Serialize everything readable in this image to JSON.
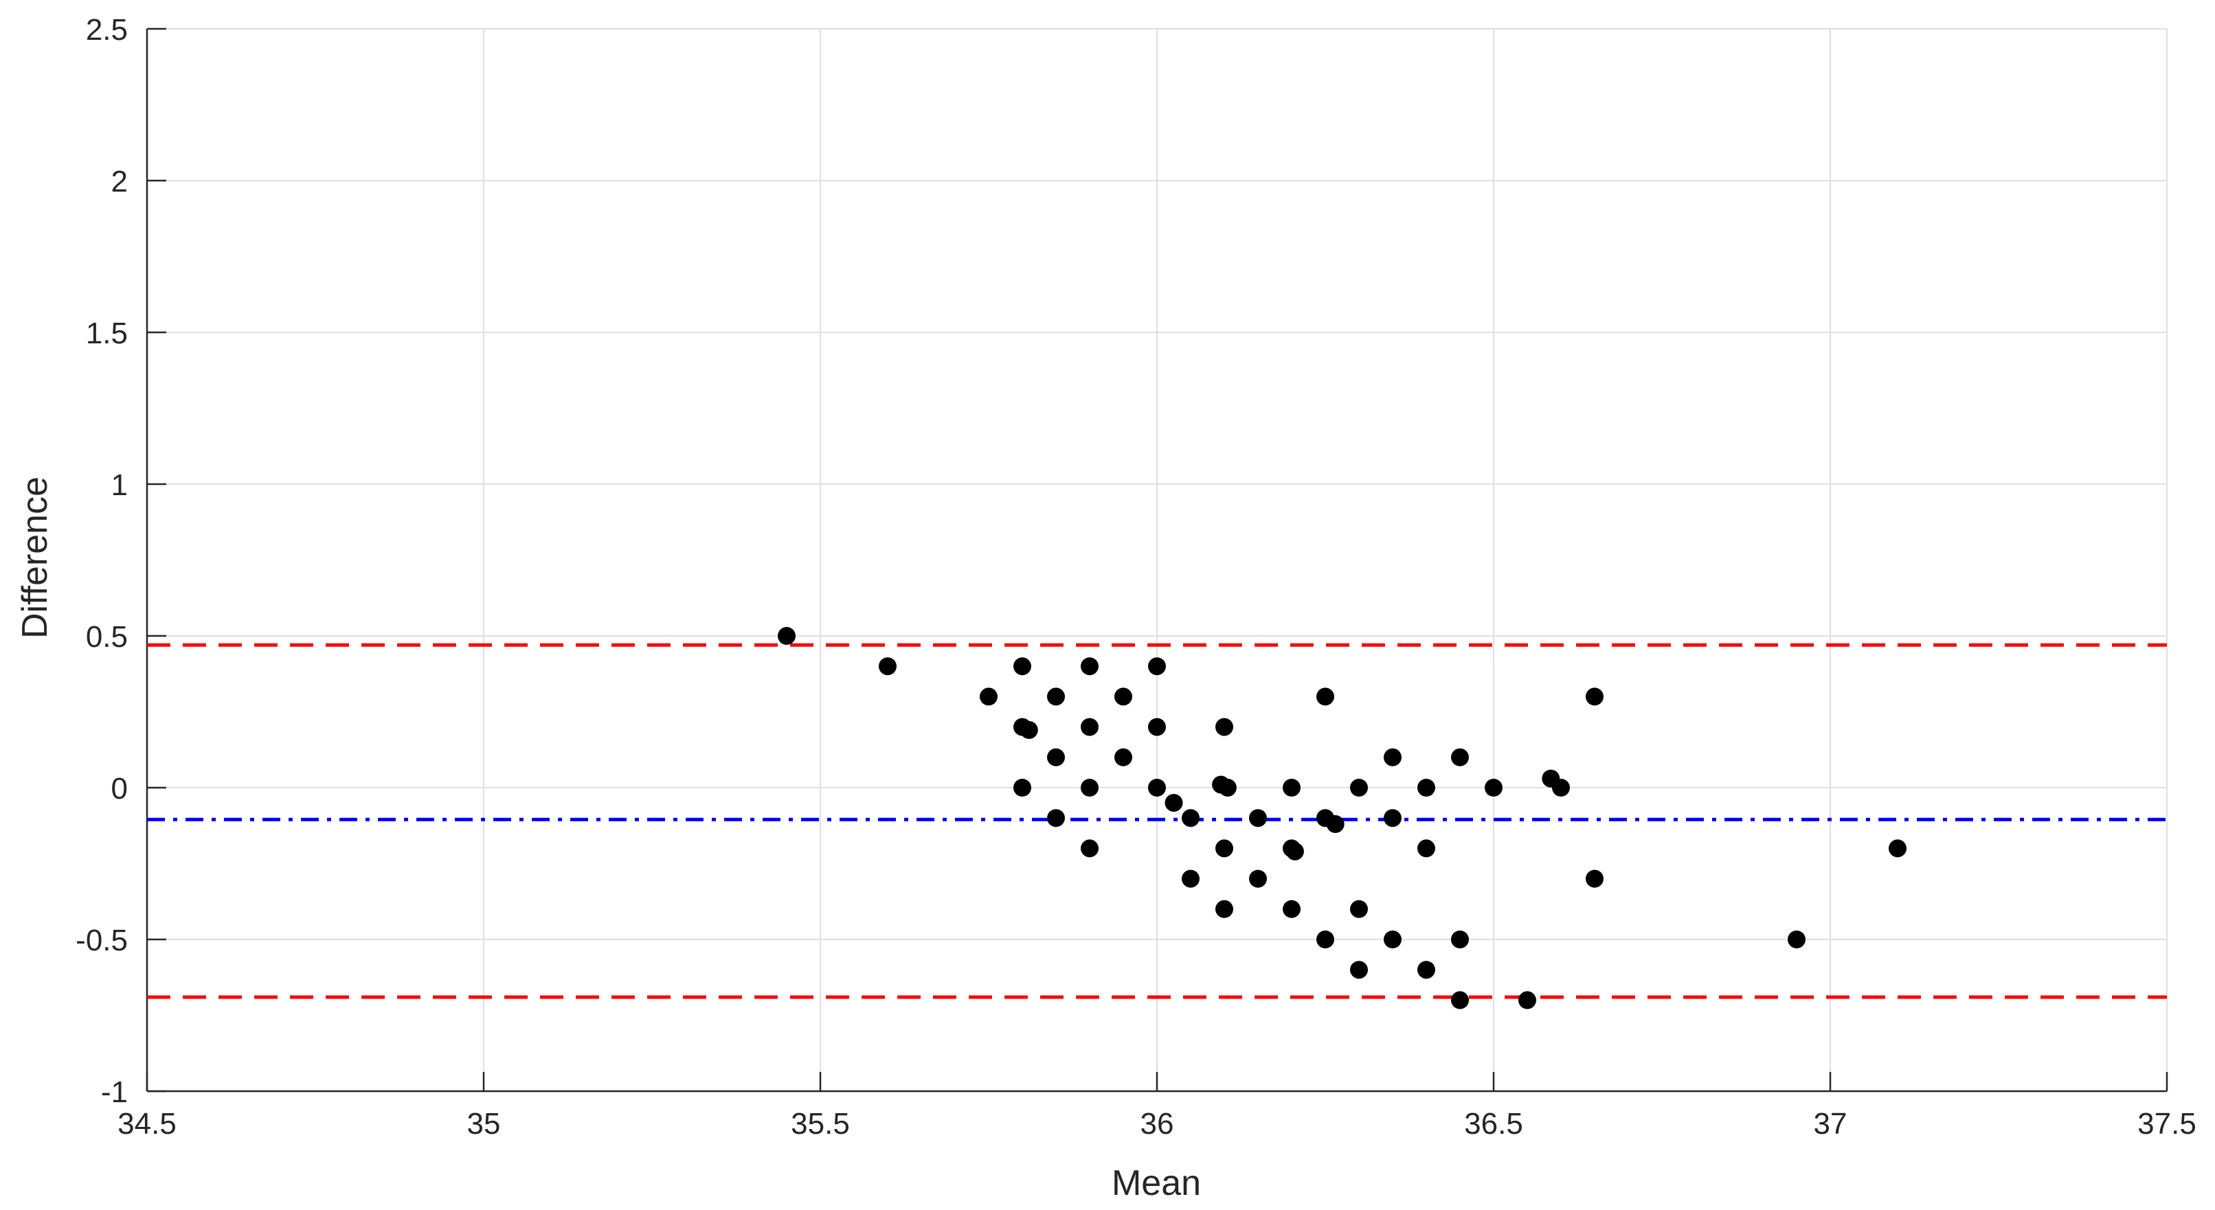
{
  "chart_data": {
    "type": "scatter",
    "title": "",
    "xlabel": "Mean",
    "ylabel": "Difference",
    "xlim": [
      34.5,
      37.5
    ],
    "ylim": [
      -1,
      2.5
    ],
    "x_ticks": [
      34.5,
      35,
      35.5,
      36,
      36.5,
      37,
      37.5
    ],
    "x_tick_labels": [
      "34.5",
      "35",
      "35.5",
      "36",
      "36.5",
      "37",
      "37.5"
    ],
    "y_ticks": [
      -1,
      -0.5,
      0,
      0.5,
      1,
      1.5,
      2,
      2.5
    ],
    "y_tick_labels": [
      "-1",
      "-0.5",
      "0",
      "0.5",
      "1",
      "1.5",
      "2",
      "2.5"
    ],
    "grid": true,
    "legend": "none",
    "marker_color": "#000000",
    "points": [
      {
        "x": 35.45,
        "y": 0.5
      },
      {
        "x": 35.6,
        "y": 0.4
      },
      {
        "x": 35.75,
        "y": 0.3
      },
      {
        "x": 35.8,
        "y": 0.4
      },
      {
        "x": 35.8,
        "y": 0.2
      },
      {
        "x": 35.81,
        "y": 0.19
      },
      {
        "x": 35.8,
        "y": 0.0
      },
      {
        "x": 35.85,
        "y": 0.3
      },
      {
        "x": 35.85,
        "y": 0.1
      },
      {
        "x": 35.85,
        "y": -0.1
      },
      {
        "x": 35.9,
        "y": 0.4
      },
      {
        "x": 35.9,
        "y": 0.2
      },
      {
        "x": 35.9,
        "y": 0.0
      },
      {
        "x": 35.9,
        "y": -0.2
      },
      {
        "x": 35.95,
        "y": 0.3
      },
      {
        "x": 35.95,
        "y": 0.1
      },
      {
        "x": 36.0,
        "y": 0.4
      },
      {
        "x": 36.0,
        "y": 0.2
      },
      {
        "x": 36.0,
        "y": 0.0
      },
      {
        "x": 36.025,
        "y": -0.05
      },
      {
        "x": 36.05,
        "y": -0.1
      },
      {
        "x": 36.05,
        "y": -0.3
      },
      {
        "x": 36.1,
        "y": 0.2
      },
      {
        "x": 36.095,
        "y": 0.01
      },
      {
        "x": 36.105,
        "y": 0.0
      },
      {
        "x": 36.1,
        "y": -0.2
      },
      {
        "x": 36.1,
        "y": -0.4
      },
      {
        "x": 36.15,
        "y": -0.1
      },
      {
        "x": 36.15,
        "y": -0.3
      },
      {
        "x": 36.2,
        "y": 0.0
      },
      {
        "x": 36.2,
        "y": -0.2
      },
      {
        "x": 36.205,
        "y": -0.21
      },
      {
        "x": 36.2,
        "y": -0.4
      },
      {
        "x": 36.25,
        "y": 0.3
      },
      {
        "x": 36.25,
        "y": -0.1
      },
      {
        "x": 36.265,
        "y": -0.12
      },
      {
        "x": 36.25,
        "y": -0.5
      },
      {
        "x": 36.3,
        "y": 0.0
      },
      {
        "x": 36.3,
        "y": -0.4
      },
      {
        "x": 36.3,
        "y": -0.6
      },
      {
        "x": 36.35,
        "y": 0.1
      },
      {
        "x": 36.35,
        "y": -0.1
      },
      {
        "x": 36.35,
        "y": -0.5
      },
      {
        "x": 36.4,
        "y": 0.0
      },
      {
        "x": 36.4,
        "y": -0.2
      },
      {
        "x": 36.4,
        "y": -0.6
      },
      {
        "x": 36.45,
        "y": 0.1
      },
      {
        "x": 36.45,
        "y": -0.5
      },
      {
        "x": 36.45,
        "y": -0.7
      },
      {
        "x": 36.5,
        "y": 0.0
      },
      {
        "x": 36.55,
        "y": -0.7
      },
      {
        "x": 36.585,
        "y": 0.03
      },
      {
        "x": 36.6,
        "y": 0.0
      },
      {
        "x": 36.65,
        "y": 0.3
      },
      {
        "x": 36.65,
        "y": -0.3
      },
      {
        "x": 36.95,
        "y": -0.5
      },
      {
        "x": 37.1,
        "y": -0.2
      }
    ],
    "reference_lines": [
      {
        "value": 0.47,
        "color": "#ff0000",
        "style": "dashed"
      },
      {
        "value": -0.105,
        "color": "#0000ff",
        "style": "dash-dot"
      },
      {
        "value": -0.69,
        "color": "#ff0000",
        "style": "dashed"
      }
    ]
  }
}
